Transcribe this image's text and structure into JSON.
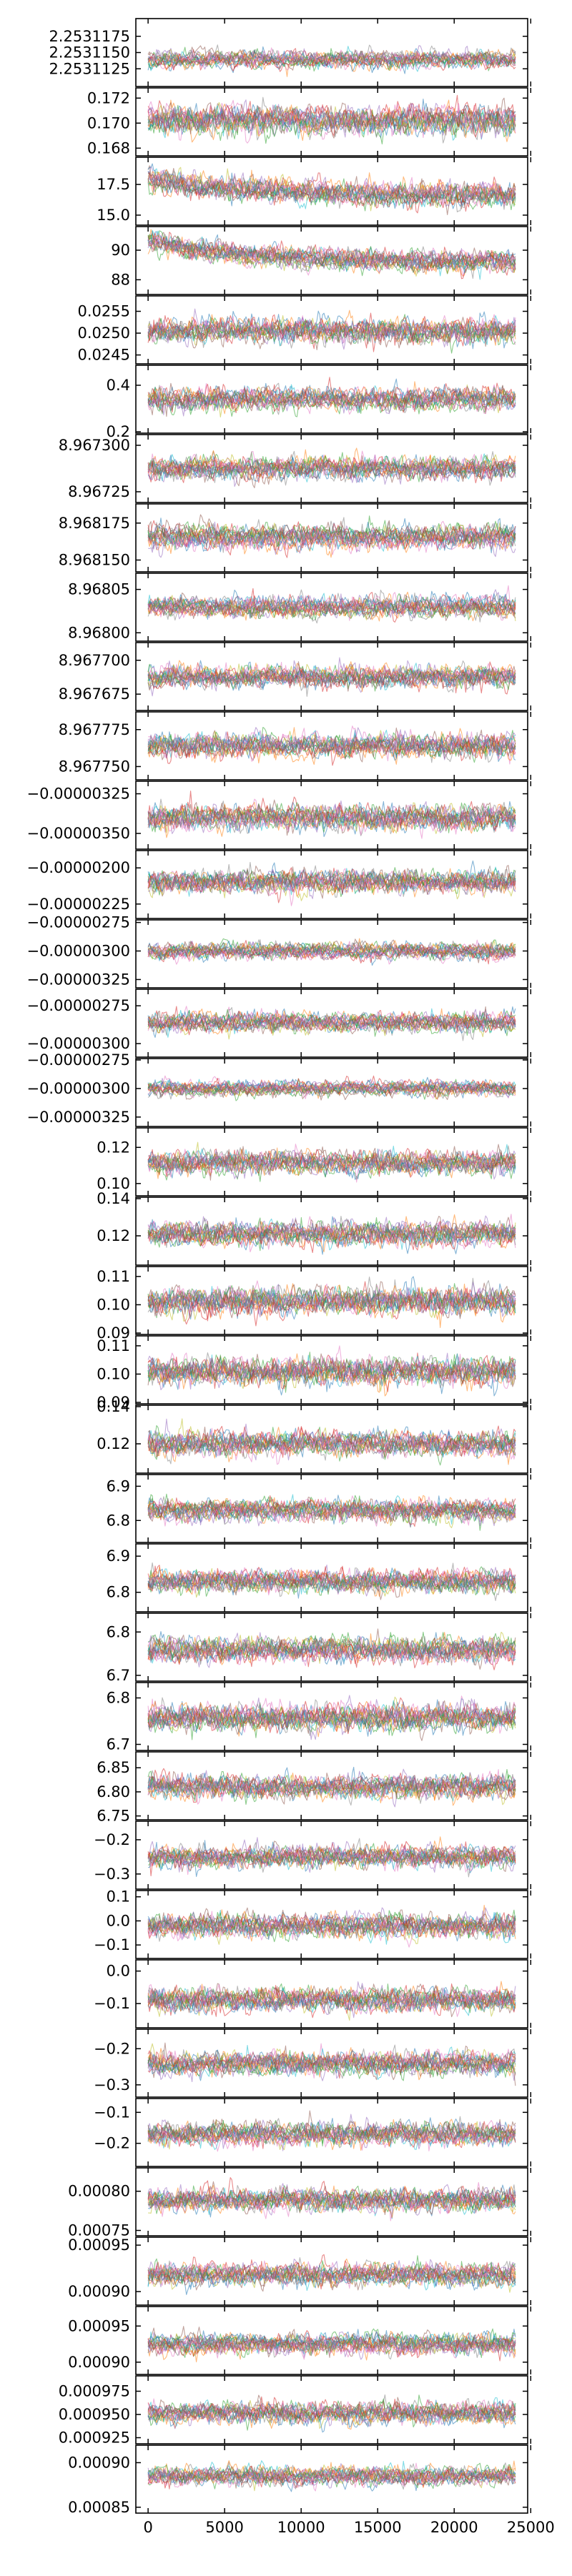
{
  "chart_data": {
    "type": "line",
    "description_of_layout": "",
    "x_axis": {
      "ticks": [
        0,
        5000,
        10000,
        15000,
        20000,
        25000
      ],
      "tick_labels": [
        "0",
        "5000",
        "10000",
        "15000",
        "20000",
        "25000"
      ],
      "range": [
        -800,
        24800
      ]
    },
    "series_per_panel": 18,
    "n_samples": 24000,
    "panels": [
      {
        "ticks": [
          2.2531125,
          2.253115,
          2.2531175
        ],
        "tick_labels": [
          "2.2531125",
          "2.2531150",
          "2.2531175"
        ],
        "ylim": [
          2.25311,
          2.25312
        ],
        "center": 2.253114,
        "amp": 1.6e-06
      },
      {
        "ticks": [
          0.168,
          0.17,
          0.172
        ],
        "tick_labels": [
          "0.168",
          "0.170",
          "0.172"
        ],
        "ylim": [
          0.1675,
          0.1727
        ],
        "center": 0.1702,
        "amp": 0.0014
      },
      {
        "ticks": [
          15.0,
          17.5
        ],
        "tick_labels": [
          "15.0",
          "17.5"
        ],
        "ylim": [
          14.3,
          19.6
        ],
        "center": 16.9,
        "amp": 1.2,
        "trend_start": 18.0,
        "trend_end": 16.6
      },
      {
        "ticks": [
          88,
          90
        ],
        "tick_labels": [
          "88",
          "90"
        ],
        "ylim": [
          87.1,
          91.5
        ],
        "center": 89.2,
        "amp": 0.9,
        "trend_start": 90.6,
        "trend_end": 89.1
      },
      {
        "ticks": [
          0.0245,
          0.025,
          0.0255
        ],
        "tick_labels": [
          "0.0245",
          "0.0250",
          "0.0255"
        ],
        "ylim": [
          0.02433,
          0.02582
        ],
        "center": 0.02505,
        "amp": 0.00035
      },
      {
        "ticks": [
          0.2,
          0.4
        ],
        "tick_labels": [
          "0.2",
          "0.4"
        ],
        "ylim": [
          0.2,
          0.48
        ],
        "center": 0.34,
        "amp": 0.06
      },
      {
        "ticks": [
          8.96725,
          8.9673
        ],
        "tick_labels": [
          "8.96725",
          "8.967300"
        ],
        "ylim": [
          8.96724,
          8.96731
        ],
        "center": 8.967275,
        "amp": 1.5e-05
      },
      {
        "ticks": [
          8.96815,
          8.968175
        ],
        "tick_labels": [
          "8.968150",
          "8.968175"
        ],
        "ylim": [
          8.968143,
          8.968187
        ],
        "center": 8.968165,
        "amp": 1e-05
      },
      {
        "ticks": [
          8.968,
          8.96805
        ],
        "tick_labels": [
          "8.96800",
          "8.96805"
        ],
        "ylim": [
          8.967992,
          8.968067
        ],
        "center": 8.96803,
        "amp": 1.5e-05
      },
      {
        "ticks": [
          8.967675,
          8.9677
        ],
        "tick_labels": [
          "8.967675",
          "8.967700"
        ],
        "ylim": [
          8.967664,
          8.967712
        ],
        "center": 8.967688,
        "amp": 1e-05
      },
      {
        "ticks": [
          8.96775,
          8.967775
        ],
        "tick_labels": [
          "8.967750",
          "8.967775"
        ],
        "ylim": [
          8.967742,
          8.967786
        ],
        "center": 8.967764,
        "amp": 1e-05
      },
      {
        "ticks": [
          -3.5e-06,
          -3.25e-06
        ],
        "tick_labels": [
          "−0.00000350",
          "−0.00000325"
        ],
        "ylim": [
          -3.59e-06,
          -3.18e-06
        ],
        "center": -3.4e-06,
        "amp": 1e-07
      },
      {
        "ticks": [
          -2.25e-06,
          -2e-06
        ],
        "tick_labels": [
          "−0.00000225",
          "−0.00000200"
        ],
        "ylim": [
          -2.34e-06,
          -1.89e-06
        ],
        "center": -2.1e-06,
        "amp": 1e-07
      },
      {
        "ticks": [
          -3.25e-06,
          -3e-06,
          -2.75e-06
        ],
        "tick_labels": [
          "−0.00000325",
          "−0.00000300",
          "−0.00000275"
        ],
        "ylim": [
          -3.31e-06,
          -2.74e-06
        ],
        "center": -3e-06,
        "amp": 9e-08
      },
      {
        "ticks": [
          -3e-06,
          -2.75e-06
        ],
        "tick_labels": [
          "−0.00000300",
          "−0.00000275"
        ],
        "ylim": [
          -3.08e-06,
          -2.65e-06
        ],
        "center": -2.86e-06,
        "amp": 8e-08
      },
      {
        "ticks": [
          -3.25e-06,
          -3e-06,
          -2.75e-06
        ],
        "tick_labels": [
          "−0.00000325",
          "−0.00000300",
          "−0.00000275"
        ],
        "ylim": [
          -3.32e-06,
          -2.75e-06
        ],
        "center": -3e-06,
        "amp": 8e-08
      },
      {
        "ticks": [
          0.1,
          0.12
        ],
        "tick_labels": [
          "0.10",
          "0.12"
        ],
        "ylim": [
          0.094,
          0.13
        ],
        "center": 0.111,
        "amp": 0.008
      },
      {
        "ticks": [
          0.12,
          0.14
        ],
        "tick_labels": [
          "0.12",
          "0.14"
        ],
        "ylim": [
          0.105,
          0.14
        ],
        "center": 0.121,
        "amp": 0.008
      },
      {
        "ticks": [
          0.09,
          0.1,
          0.11
        ],
        "tick_labels": [
          "0.09",
          "0.10",
          "0.11"
        ],
        "ylim": [
          0.09,
          0.113
        ],
        "center": 0.101,
        "amp": 0.006
      },
      {
        "ticks": [
          0.09,
          0.1,
          0.11
        ],
        "tick_labels": [
          "0.09",
          "0.10",
          "0.11"
        ],
        "ylim": [
          0.09,
          0.113
        ],
        "center": 0.101,
        "amp": 0.006
      },
      {
        "ticks": [
          0.12,
          0.14
        ],
        "tick_labels": [
          "0.12",
          "0.14"
        ],
        "ylim": [
          0.105,
          0.14
        ],
        "center": 0.12,
        "amp": 0.008
      },
      {
        "ticks": [
          6.8,
          6.9
        ],
        "tick_labels": [
          "6.8",
          "6.9"
        ],
        "ylim": [
          6.74,
          6.93
        ],
        "center": 6.83,
        "amp": 0.04
      },
      {
        "ticks": [
          6.8,
          6.9
        ],
        "tick_labels": [
          "6.8",
          "6.9"
        ],
        "ylim": [
          6.75,
          6.93
        ],
        "center": 6.83,
        "amp": 0.04
      },
      {
        "ticks": [
          6.7,
          6.8
        ],
        "tick_labels": [
          "6.7",
          "6.8"
        ],
        "ylim": [
          6.69,
          6.84
        ],
        "center": 6.76,
        "amp": 0.035
      },
      {
        "ticks": [
          6.7,
          6.8
        ],
        "tick_labels": [
          "6.7",
          "6.8"
        ],
        "ylim": [
          6.69,
          6.83
        ],
        "center": 6.76,
        "amp": 0.035
      },
      {
        "ticks": [
          6.75,
          6.8,
          6.85
        ],
        "tick_labels": [
          "6.75",
          "6.80",
          "6.85"
        ],
        "ylim": [
          6.745,
          6.88
        ],
        "center": 6.81,
        "amp": 0.03
      },
      {
        "ticks": [
          -0.3,
          -0.2
        ],
        "tick_labels": [
          "−0.3",
          "−0.2"
        ],
        "ylim": [
          -0.34,
          -0.15
        ],
        "center": -0.25,
        "amp": 0.04
      },
      {
        "ticks": [
          -0.1,
          0.0,
          0.1
        ],
        "tick_labels": [
          "−0.1",
          "0.0",
          "0.1"
        ],
        "ylim": [
          -0.15,
          0.12
        ],
        "center": -0.02,
        "amp": 0.06
      },
      {
        "ticks": [
          -0.1,
          0.0
        ],
        "tick_labels": [
          "−0.1",
          "0.0"
        ],
        "ylim": [
          -0.17,
          0.03
        ],
        "center": -0.09,
        "amp": 0.045
      },
      {
        "ticks": [
          -0.3,
          -0.2
        ],
        "tick_labels": [
          "−0.3",
          "−0.2"
        ],
        "ylim": [
          -0.33,
          -0.15
        ],
        "center": -0.24,
        "amp": 0.04
      },
      {
        "ticks": [
          -0.2,
          -0.1
        ],
        "tick_labels": [
          "−0.2",
          "−0.1"
        ],
        "ylim": [
          -0.27,
          -0.06
        ],
        "center": -0.17,
        "amp": 0.045
      },
      {
        "ticks": [
          0.00075,
          0.0008
        ],
        "tick_labels": [
          "0.00075",
          "0.00080"
        ],
        "ylim": [
          0.000745,
          0.000828
        ],
        "center": 0.000787,
        "amp": 1.8e-05
      },
      {
        "ticks": [
          0.0009,
          0.00095
        ],
        "tick_labels": [
          "0.00090",
          "0.00095"
        ],
        "ylim": [
          0.000887,
          0.000957
        ],
        "center": 0.000918,
        "amp": 1.5e-05
      },
      {
        "ticks": [
          0.0009,
          0.00095
        ],
        "tick_labels": [
          "0.00090",
          "0.00095"
        ],
        "ylim": [
          0.000885,
          0.000975
        ],
        "center": 0.000925,
        "amp": 1.8e-05
      },
      {
        "ticks": [
          0.000925,
          0.00095,
          0.000975
        ],
        "tick_labels": [
          "0.000925",
          "0.000950",
          "0.000975"
        ],
        "ylim": [
          0.00092,
          0.00099
        ],
        "center": 0.000952,
        "amp": 1.4e-05
      },
      {
        "ticks": [
          0.00085,
          0.0009
        ],
        "tick_labels": [
          "0.00085",
          "0.00090"
        ],
        "ylim": [
          0.000845,
          0.000918
        ],
        "center": 0.000885,
        "amp": 1.3e-05
      }
    ],
    "palette": [
      "#1f77b4",
      "#ff7f0e",
      "#2ca02c",
      "#d62728",
      "#9467bd",
      "#8c564b",
      "#e377c2",
      "#7f7f7f",
      "#bcbd22",
      "#17becf"
    ]
  }
}
